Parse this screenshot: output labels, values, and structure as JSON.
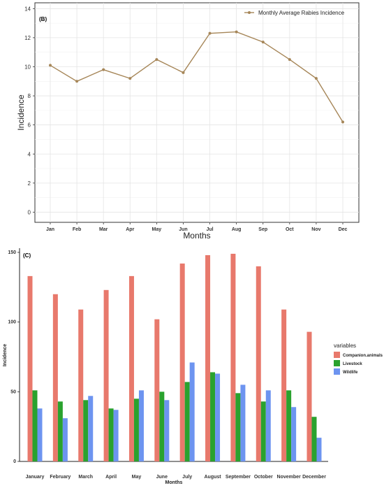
{
  "chart_data": [
    {
      "type": "line",
      "panel_label": "(B)",
      "categories": [
        "Jan",
        "Feb",
        "Mar",
        "Apr",
        "May",
        "Jun",
        "Jul",
        "Aug",
        "Sep",
        "Oct",
        "Nov",
        "Dec"
      ],
      "series": [
        {
          "name": "Monthly Average Rabies Incidence",
          "values": [
            10.1,
            9.0,
            9.8,
            9.2,
            10.5,
            9.6,
            12.3,
            12.4,
            11.7,
            10.5,
            9.2,
            6.2
          ],
          "color": "#a68658"
        }
      ],
      "xlabel": "Months",
      "ylabel": "Incidence",
      "ylim": [
        -0.7,
        14.4
      ],
      "yticks": [
        0,
        2,
        4,
        6,
        8,
        10,
        12,
        14
      ],
      "grid": true,
      "legend": "top-right"
    },
    {
      "type": "bar",
      "panel_label": "(C)",
      "categories": [
        "January",
        "February",
        "March",
        "April",
        "May",
        "June",
        "July",
        "August",
        "September",
        "October",
        "November",
        "December"
      ],
      "series": [
        {
          "name": "Companion.animals",
          "values": [
            133,
            120,
            109,
            123,
            133,
            102,
            142,
            148,
            149,
            140,
            109,
            93
          ],
          "color": "#e8796c"
        },
        {
          "name": "Livestock",
          "values": [
            51,
            43,
            44,
            38,
            45,
            50,
            57,
            64,
            49,
            43,
            51,
            32
          ],
          "color": "#2aa22e"
        },
        {
          "name": "Wildlife",
          "values": [
            38,
            31,
            47,
            37,
            51,
            44,
            71,
            63,
            55,
            51,
            39,
            17
          ],
          "color": "#6d94f0"
        }
      ],
      "xlabel": "Months",
      "ylabel": "Incidence",
      "ylim": [
        0,
        153
      ],
      "yticks": [
        0,
        50,
        100,
        150
      ],
      "legend_title": "variables",
      "legend": "right"
    }
  ]
}
